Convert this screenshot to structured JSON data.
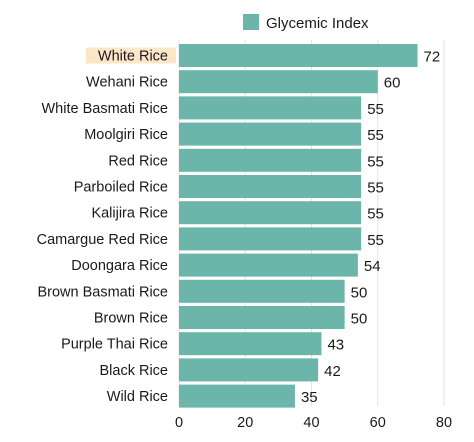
{
  "chart_data": {
    "type": "bar",
    "orientation": "horizontal",
    "categories": [
      "White Rice",
      "Wehani Rice",
      "White Basmati Rice",
      "Moolgiri Rice",
      "Red Rice",
      "Parboiled Rice",
      "Kalijira Rice",
      "Camargue Red Rice",
      "Doongara Rice",
      "Brown Basmati Rice",
      "Brown Rice",
      "Purple Thai Rice",
      "Black Rice",
      "Wild Rice"
    ],
    "series": [
      {
        "name": "Glycemic Index",
        "values": [
          72,
          60,
          55,
          55,
          55,
          55,
          55,
          55,
          54,
          50,
          50,
          43,
          42,
          35
        ]
      }
    ],
    "highlighted_category": "White Rice",
    "xlim": [
      0,
      80
    ],
    "xticks": [
      "0",
      "20",
      "40",
      "60",
      "80"
    ],
    "grid": "vertical",
    "legend_position": "top-right",
    "colors": {
      "bar": "#6bb5aa",
      "highlight": "#fbe7c8",
      "grid": "#e3e3e3"
    }
  }
}
